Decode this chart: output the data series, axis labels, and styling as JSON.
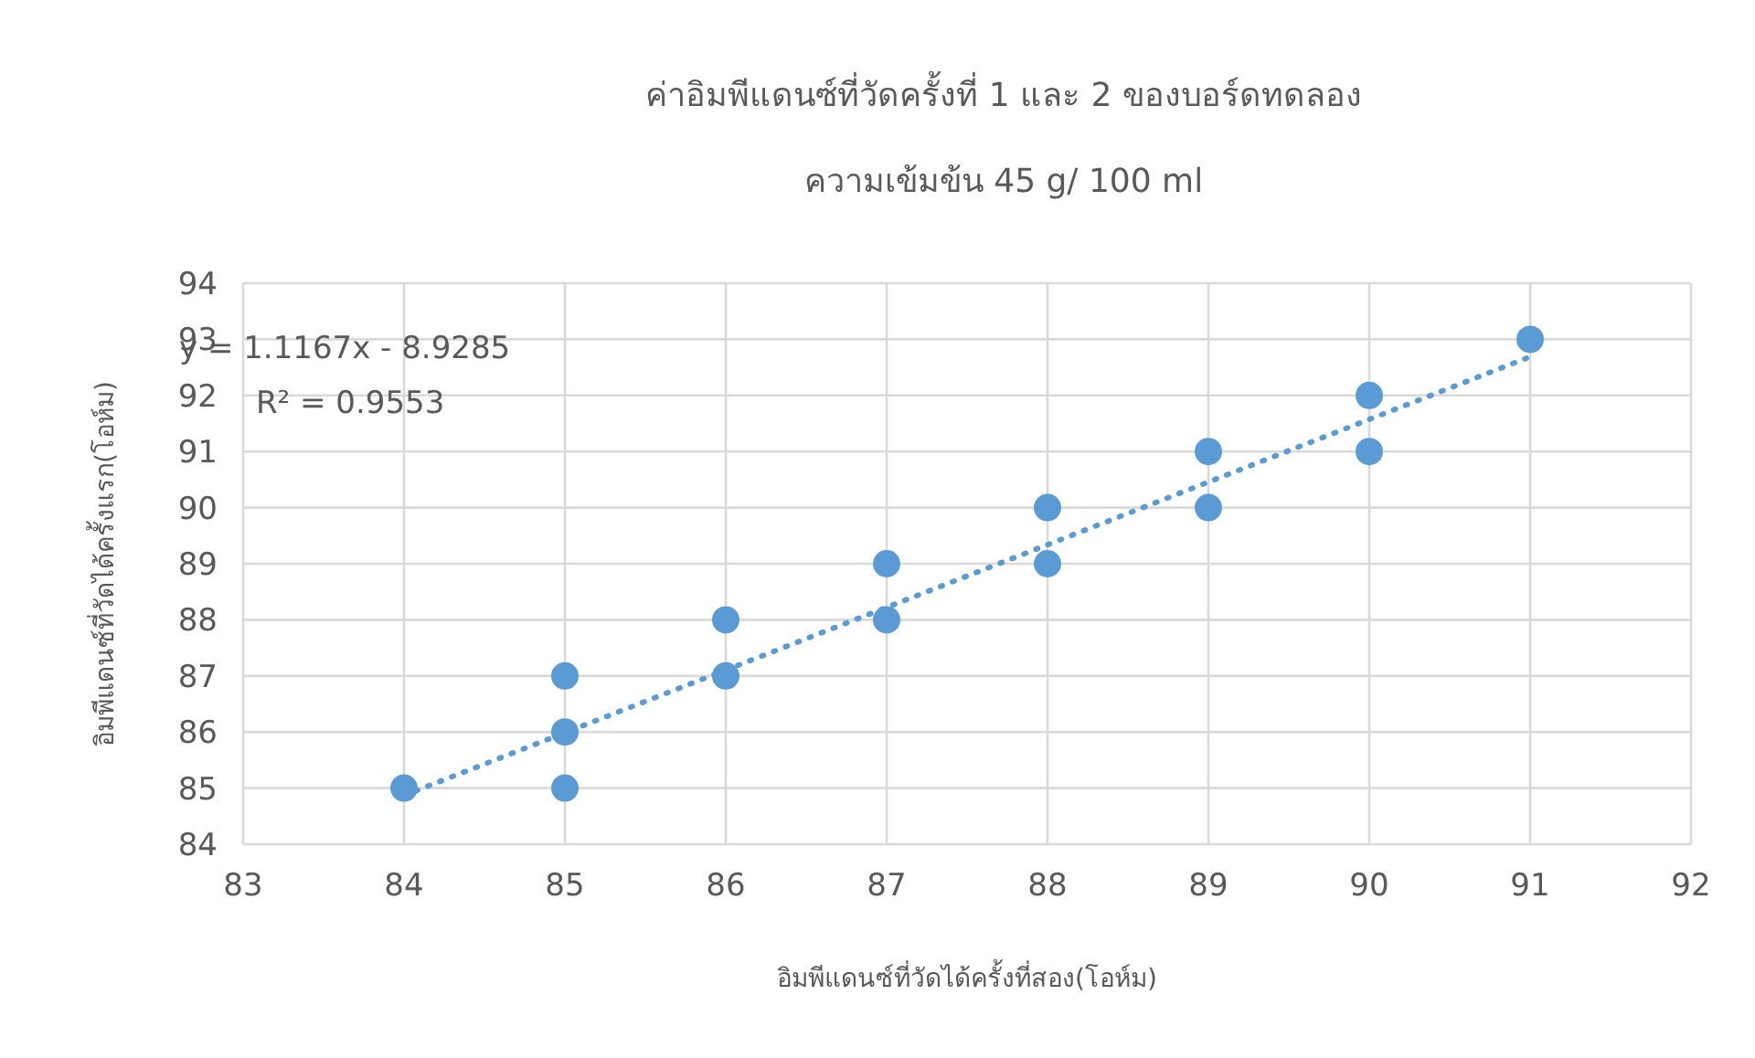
{
  "chart_data": {
    "type": "scatter",
    "title": "ค่าอิมพีแดนซ์ที่วัดครั้งที่ 1 และ 2 ของบอร์ดทดลอง",
    "subtitle": "ความเข้มข้น 45 g/ 100 ml",
    "xlabel": "อิมพีแดนซ์ที่วัดได้ครั้งที่สอง(โอห์ม)",
    "ylabel": "อิมพีแดนซ์ที่วัดได้ครั้งแรก(โอห์ม)",
    "annotations": [
      "y = 1.1167x - 8.9285",
      "R² = 0.9553"
    ],
    "series": [
      {
        "color": "#5b9bd5",
        "marker": "circle",
        "x": [
          84,
          85,
          85,
          85,
          86,
          86,
          87,
          87,
          88,
          88,
          89,
          89,
          90,
          90,
          91
        ],
        "values": [
          85,
          87,
          86,
          85,
          88,
          87,
          89,
          88,
          90,
          89,
          91,
          90,
          92,
          91,
          93
        ]
      },
      {
        "type": "line",
        "color": "#5b9bd5",
        "line_style": "dotted",
        "marker": "none",
        "x": [
          84,
          91
        ],
        "values": [
          84.87,
          92.69
        ]
      }
    ],
    "xlim": [
      83,
      92
    ],
    "xticks": [
      83,
      84,
      85,
      86,
      87,
      88,
      89,
      90,
      91,
      92
    ],
    "ylim": [
      84,
      94
    ],
    "yticks": [
      84,
      85,
      86,
      87,
      88,
      89,
      90,
      91,
      92,
      93,
      94
    ],
    "grid": true
  }
}
